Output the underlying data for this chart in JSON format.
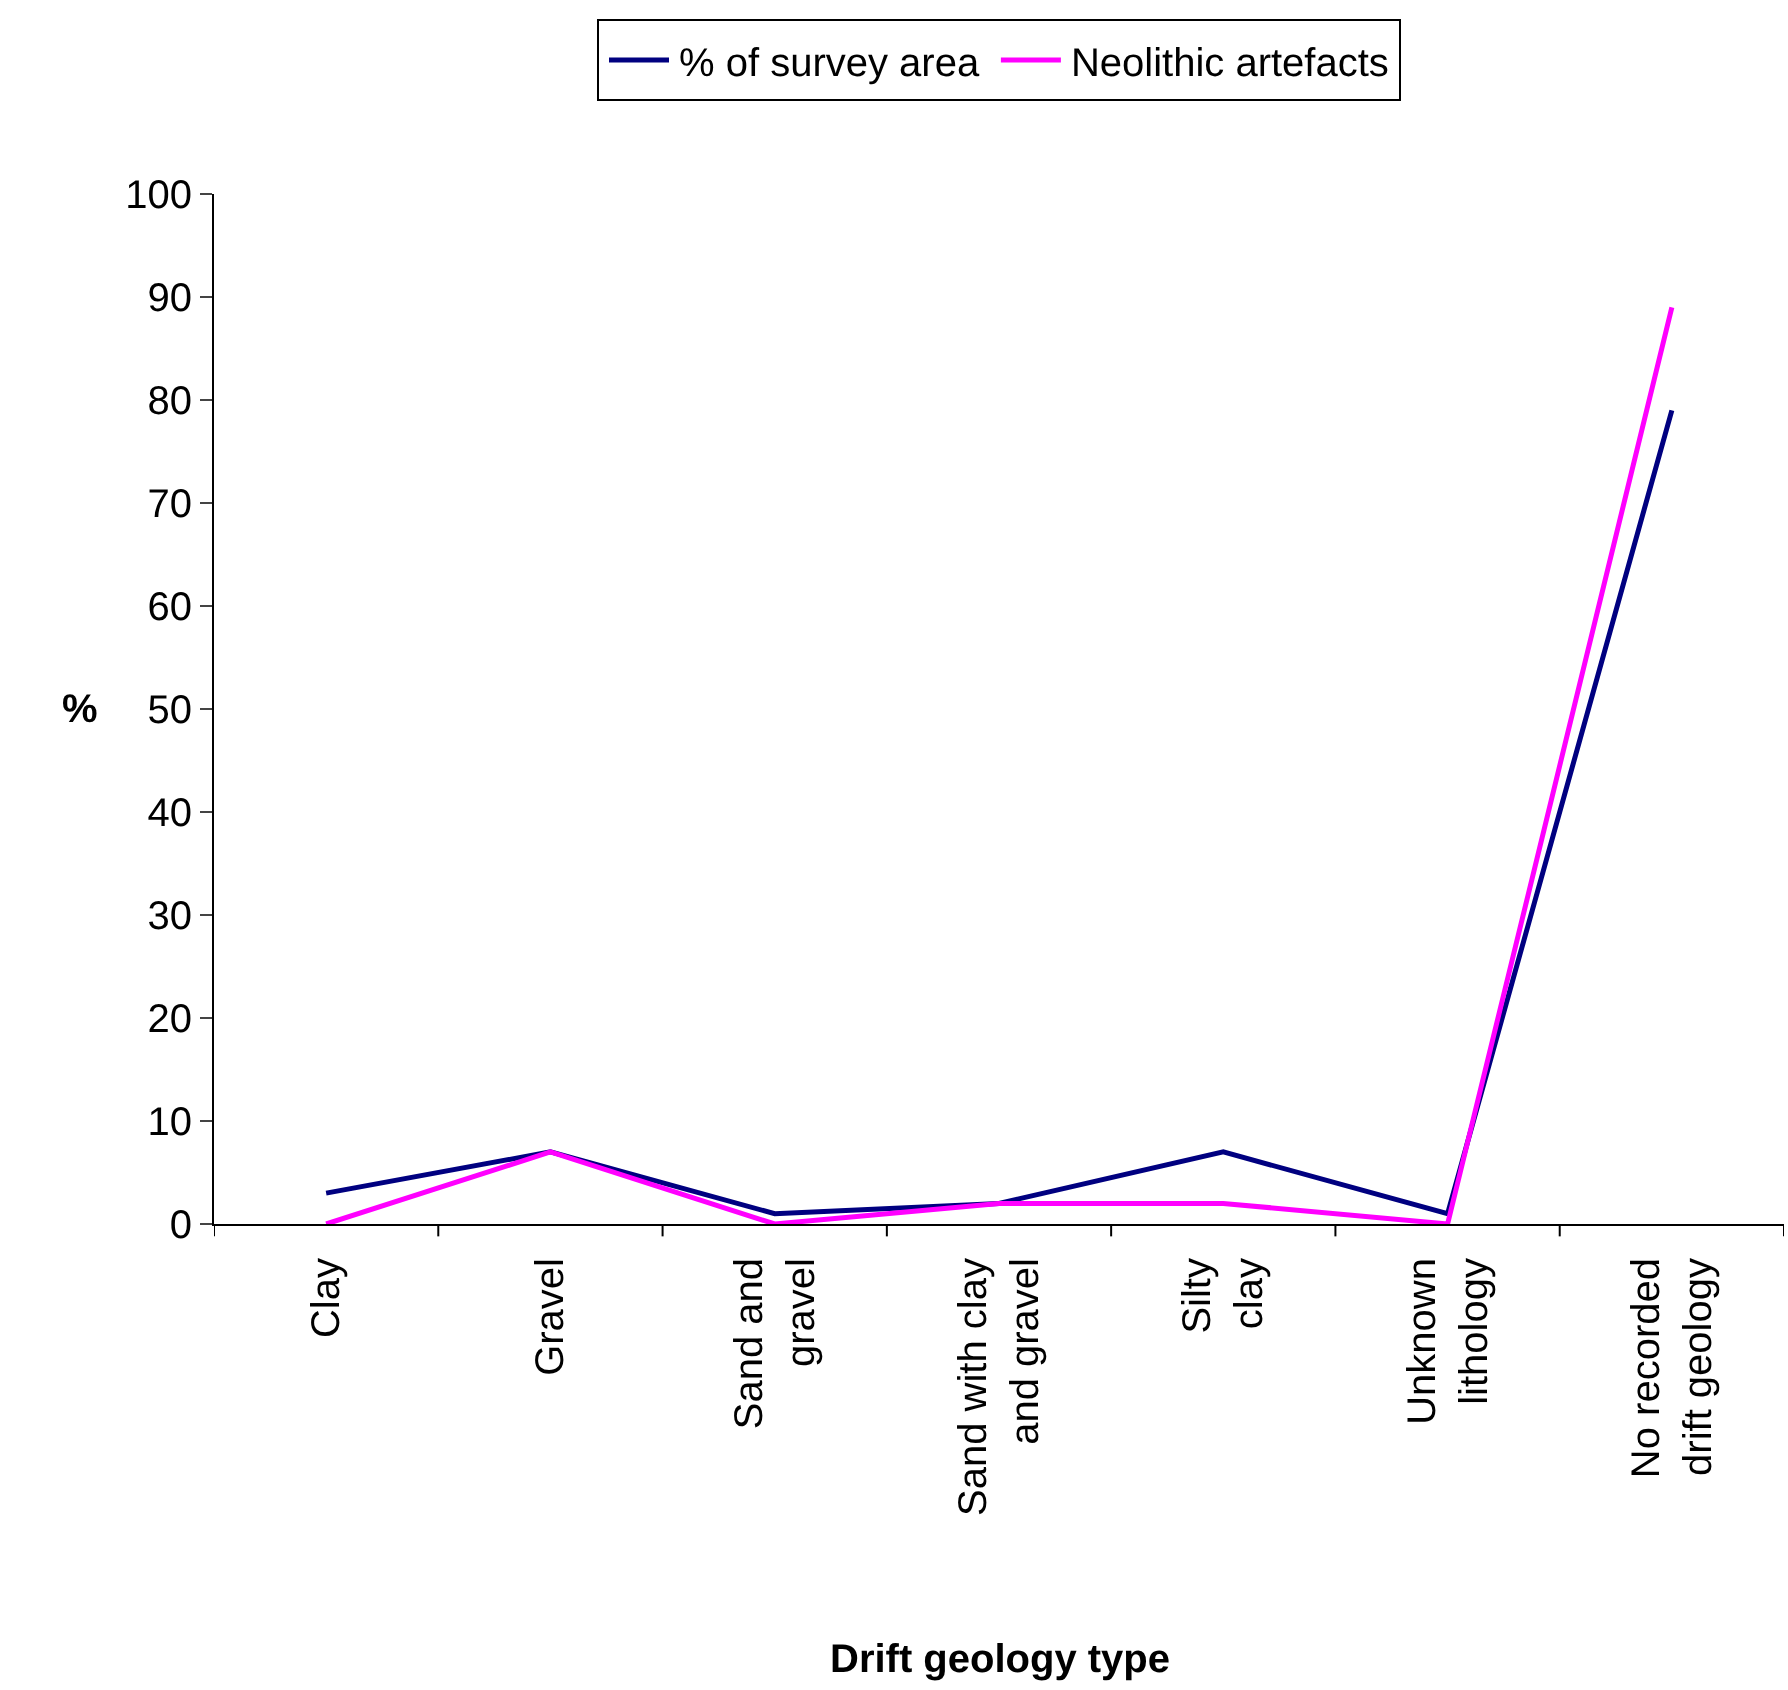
{
  "chart_data": {
    "type": "line",
    "xlabel": "Drift geology type",
    "ylabel": "%",
    "categories": [
      "Clay",
      "Gravel",
      "Sand and gravel",
      "Sand with clay and gravel",
      "Silty clay",
      "Unknown lithology",
      "No recorded drift geology"
    ],
    "series": [
      {
        "name": "% of survey area",
        "color": "#000080",
        "values": [
          3,
          7,
          1,
          2,
          7,
          1,
          79
        ]
      },
      {
        "name": "Neolithic artefacts",
        "color": "#ff00ff",
        "values": [
          0,
          7,
          0,
          2,
          2,
          0,
          89
        ]
      }
    ],
    "ylim": [
      0,
      100
    ],
    "yticks": [
      0,
      10,
      20,
      30,
      40,
      50,
      60,
      70,
      80,
      90,
      100
    ],
    "grid": false,
    "legend": "top",
    "marker": "none"
  }
}
